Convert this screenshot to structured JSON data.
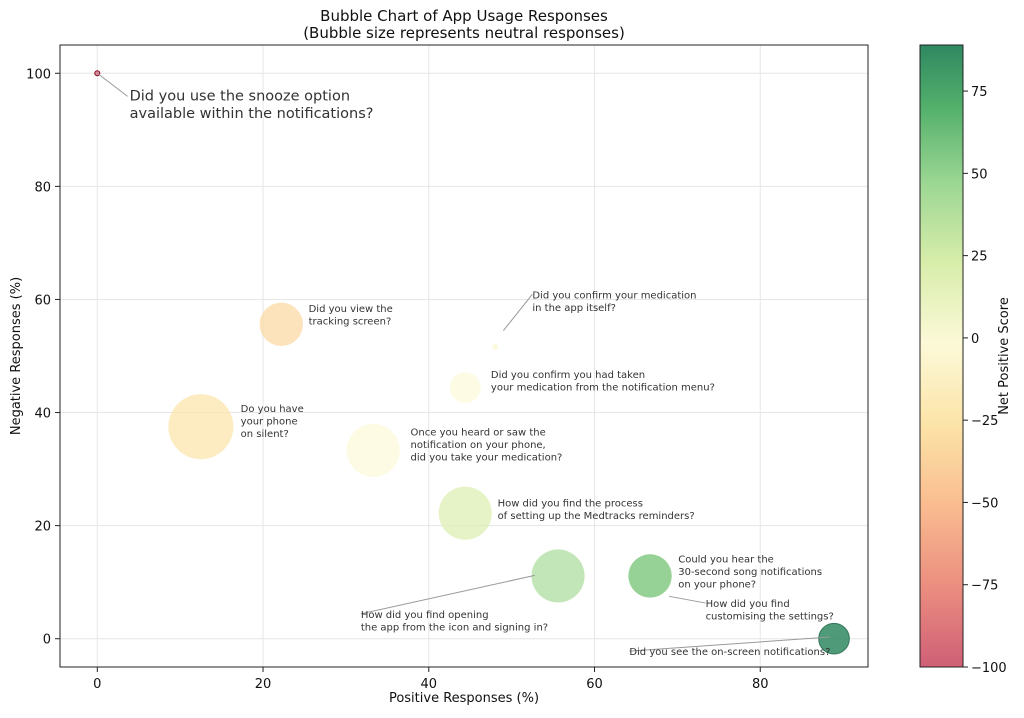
{
  "chart_data": {
    "type": "scatter",
    "title": "Bubble Chart of App Usage Responses",
    "subtitle": "(Bubble size represents neutral responses)",
    "xlabel": "Positive Responses (%)",
    "ylabel": "Negative Responses (%)",
    "xlim": [
      -4.5,
      93
    ],
    "ylim": [
      -5,
      105
    ],
    "x_ticks": [
      0,
      20,
      40,
      60,
      80
    ],
    "y_ticks": [
      0,
      20,
      40,
      60,
      80,
      100
    ],
    "grid": true,
    "colorbar": {
      "label": "Net Positive Score",
      "range": [
        -100,
        89
      ],
      "ticks": [
        -100,
        -75,
        -50,
        -25,
        0,
        25,
        50,
        75
      ],
      "colormap": "RdYlGn"
    },
    "points": [
      {
        "question": "Did you use the snooze option available within the notifications?",
        "x": 0,
        "y": 100,
        "neutral": 0,
        "net": -100
      },
      {
        "question": "Did you view the tracking screen?",
        "x": 22.2,
        "y": 55.6,
        "neutral": 22.2,
        "net": -33.4
      },
      {
        "question": "Did you confirm your medication in the app itself?",
        "x": 48,
        "y": 51.6,
        "neutral": 0.4,
        "net": -3.6
      },
      {
        "question": "Did you confirm you had taken your medication from the notification menu?",
        "x": 44.4,
        "y": 44.4,
        "neutral": 11.2,
        "net": 0
      },
      {
        "question": "Do you have your phone on silent?",
        "x": 12.5,
        "y": 37.5,
        "neutral": 50,
        "net": -25
      },
      {
        "question": "Once you heard or saw the notification on your phone, did you take your medication?",
        "x": 33.3,
        "y": 33.3,
        "neutral": 33.4,
        "net": 0
      },
      {
        "question": "How did you find the process of setting up the Medtracks reminders?",
        "x": 44.4,
        "y": 22.2,
        "neutral": 33.4,
        "net": 22.2
      },
      {
        "question": "How did you find opening the app from the icon and signing in?",
        "x": 55.6,
        "y": 11.1,
        "neutral": 33.3,
        "net": 44.5
      },
      {
        "question": "Could you hear the 30-second song notifications on your phone?",
        "x": 66.7,
        "y": 11.1,
        "neutral": 22.2,
        "net": 55.6
      },
      {
        "question": "How did you find customising the settings?",
        "x": 66.7,
        "y": 11.1,
        "neutral": 22.2,
        "net": 55.6
      },
      {
        "question": "Did you see the on-screen notifications?",
        "x": 88.9,
        "y": 0,
        "neutral": 11.1,
        "net": 88.9
      }
    ],
    "annotations": [
      {
        "lines": [
          "Did you use the snooze option",
          "available within the notifications?"
        ],
        "size": "large",
        "x": 3.9,
        "y": 95.2,
        "tx": 0,
        "ty": 100
      },
      {
        "lines": [
          "Did you view the",
          "tracking screen?"
        ],
        "x": 25.5,
        "y": 57.8
      },
      {
        "lines": [
          "Did you confirm your medication",
          "in the app itself?"
        ],
        "x": 52.5,
        "y": 60.2,
        "tx": 49,
        "ty": 54.5
      },
      {
        "lines": [
          "Did you confirm you had taken",
          "your medication from the notification menu?"
        ],
        "x": 47.5,
        "y": 46.1
      },
      {
        "lines": [
          "Do you have",
          "your phone",
          "on silent?"
        ],
        "x": 17.3,
        "y": 40.1
      },
      {
        "lines": [
          "Once you heard or saw the",
          "notification on your phone,",
          "did you take your medication?"
        ],
        "x": 37.8,
        "y": 35.9
      },
      {
        "lines": [
          "How did you find the process",
          "of setting up the Medtracks reminders?"
        ],
        "x": 48.3,
        "y": 23.4
      },
      {
        "lines": [
          "How did you find opening",
          "the app from the icon and signing in?"
        ],
        "x": 31.8,
        "y": 3.7,
        "tx": 52.8,
        "ty": 11.2
      },
      {
        "lines": [
          "Could you hear the",
          "30-second song notifications",
          "on your phone?"
        ],
        "x": 70.1,
        "y": 13.5
      },
      {
        "lines": [
          "How did you find",
          "customising the settings?"
        ],
        "x": 73.4,
        "y": 5.6,
        "tx": 69,
        "ty": 7.5
      },
      {
        "lines": [
          "Did you see the on-screen notifications?"
        ],
        "x": 64.2,
        "y": -2.9,
        "tx": 88.4,
        "ty": 0.3
      }
    ]
  }
}
